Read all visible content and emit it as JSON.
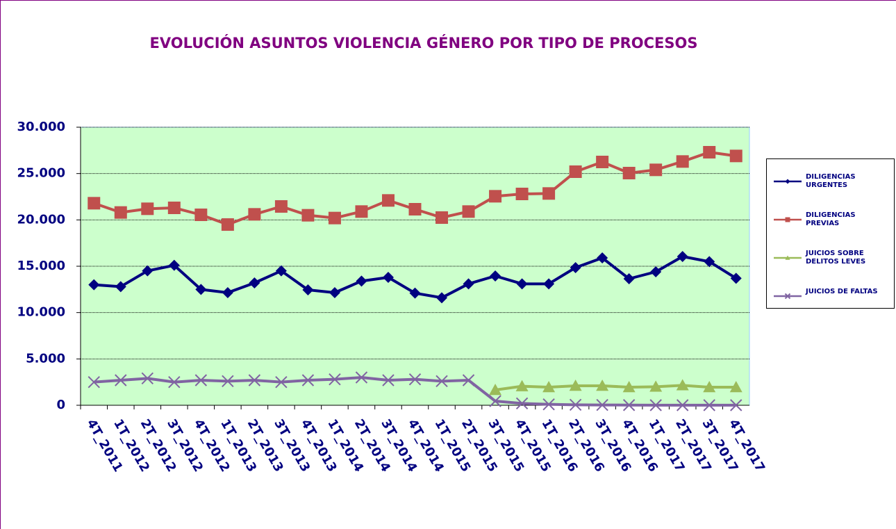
{
  "chart_data": {
    "type": "line",
    "title": "EVOLUCIÓN ASUNTOS VIOLENCIA GÉNERO POR TIPO DE PROCESOS",
    "categories": [
      "4T_2011",
      "1T_2012",
      "2T_2012",
      "3T_2012",
      "4T_2012",
      "1T_2013",
      "2T_2013",
      "3T_2013",
      "4T_2013",
      "1T_2014",
      "2T_2014",
      "3T_2014",
      "4T_2014",
      "1T_2015",
      "2T_2015",
      "3T_2015",
      "4T_2015",
      "1T_2016",
      "2T_2016",
      "3T_2016",
      "4T_2016",
      "1T_2017",
      "2T_2017",
      "3T_2017",
      "4T_2017"
    ],
    "series": [
      {
        "name": "DILIGENCIAS URGENTES",
        "color": "#000080",
        "marker": "diamond",
        "values": [
          13000,
          12800,
          14500,
          15100,
          12500,
          12150,
          13200,
          14500,
          12450,
          12150,
          13400,
          13800,
          12100,
          11600,
          13100,
          13950,
          13100,
          13100,
          14850,
          15900,
          13650,
          14400,
          16050,
          15500,
          13700
        ]
      },
      {
        "name": "DILIGENCIAS PREVIAS",
        "color": "#c0504d",
        "marker": "square",
        "values": [
          21800,
          20800,
          21200,
          21300,
          20550,
          19500,
          20600,
          21450,
          20500,
          20200,
          20900,
          22100,
          21150,
          20250,
          20900,
          22550,
          22800,
          22850,
          25200,
          26250,
          25050,
          25400,
          26300,
          27300,
          26900
        ]
      },
      {
        "name": "JUICIOS SOBRE DELITOS LEVES",
        "color": "#9bbb59",
        "marker": "triangle",
        "values": [
          null,
          null,
          null,
          null,
          null,
          null,
          null,
          null,
          null,
          null,
          null,
          null,
          null,
          null,
          null,
          1650,
          2050,
          1950,
          2100,
          2100,
          1950,
          2000,
          2150,
          1950,
          1950
        ]
      },
      {
        "name": "JUICIOS DE FALTAS",
        "color": "#8064a2",
        "marker": "x",
        "values": [
          2500,
          2700,
          2900,
          2500,
          2700,
          2600,
          2700,
          2500,
          2700,
          2800,
          3000,
          2700,
          2800,
          2600,
          2700,
          450,
          200,
          100,
          50,
          30,
          20,
          10,
          10,
          10,
          10
        ]
      }
    ],
    "ylim": [
      0,
      30000
    ],
    "yticks": [
      0,
      {
        "value": 5000,
        "label": "5.000"
      },
      {
        "value": 10000,
        "label": "10.000"
      },
      {
        "value": 15000,
        "label": "15.000"
      },
      {
        "value": 20000,
        "label": "20.000"
      },
      {
        "value": 25000,
        "label": "25.000"
      },
      {
        "value": 30000,
        "label": "30.000"
      }
    ],
    "grid": true,
    "legend": "right",
    "background": "#ccffcc"
  }
}
